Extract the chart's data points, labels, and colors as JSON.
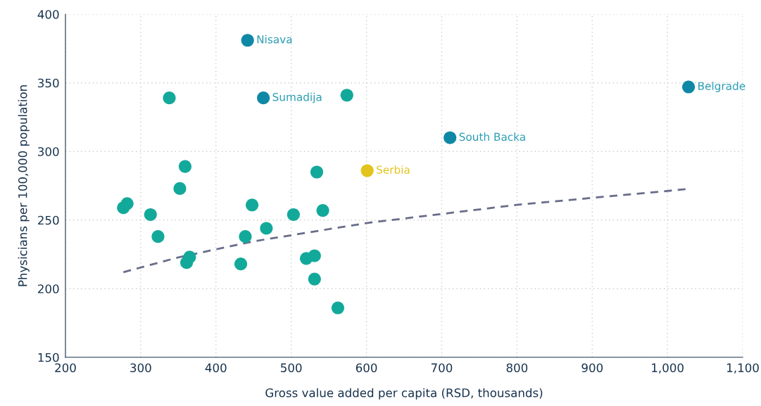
{
  "chart_data": {
    "type": "scatter",
    "xlabel": "Gross value added per capita (RSD, thousands)",
    "ylabel": "Physicians per 100,000 population",
    "xlim": [
      200,
      1100
    ],
    "xticks": [
      200,
      300,
      400,
      500,
      600,
      700,
      800,
      900,
      {
        "value": 1000,
        "label": "1,000"
      },
      {
        "value": 1100,
        "label": "1,100"
      }
    ],
    "ylim": [
      150,
      400
    ],
    "yticks": [
      150,
      200,
      250,
      300,
      350,
      400
    ],
    "grid": true,
    "marker": "circle",
    "series": [
      {
        "color": "#12a99a",
        "x": [
          338,
          574,
          359,
          352,
          282,
          277,
          313,
          323,
          534,
          448,
          503,
          542,
          467,
          439,
          365,
          361,
          433,
          520,
          531,
          531,
          562
        ],
        "values": [
          339,
          341,
          289,
          273,
          262,
          259,
          254,
          238,
          285,
          261,
          254,
          257,
          244,
          238,
          223,
          219,
          218,
          222,
          224,
          207,
          186
        ]
      },
      {
        "name": "Nisava",
        "color": "#0e88a5",
        "x": [
          442
        ],
        "values": [
          381
        ]
      },
      {
        "name": "Sumadija",
        "color": "#0e88a5",
        "x": [
          463
        ],
        "values": [
          339
        ]
      },
      {
        "name": "Belgrade",
        "color": "#0e88a5",
        "x": [
          1028
        ],
        "values": [
          347
        ]
      },
      {
        "name": "South Backa",
        "color": "#0e88a5",
        "x": [
          711
        ],
        "values": [
          310
        ]
      },
      {
        "name": "Serbia",
        "color": "#e2c41c",
        "x": [
          601
        ],
        "values": [
          286
        ]
      },
      {
        "type": "line",
        "color": "#686d8a",
        "line_style": "dashed",
        "marker": "none",
        "x": [
          277,
          350,
          450,
          600,
          800,
          1025
        ],
        "values": [
          212,
          222.8,
          234.5,
          247.8,
          261.1,
          272.5
        ]
      }
    ]
  }
}
